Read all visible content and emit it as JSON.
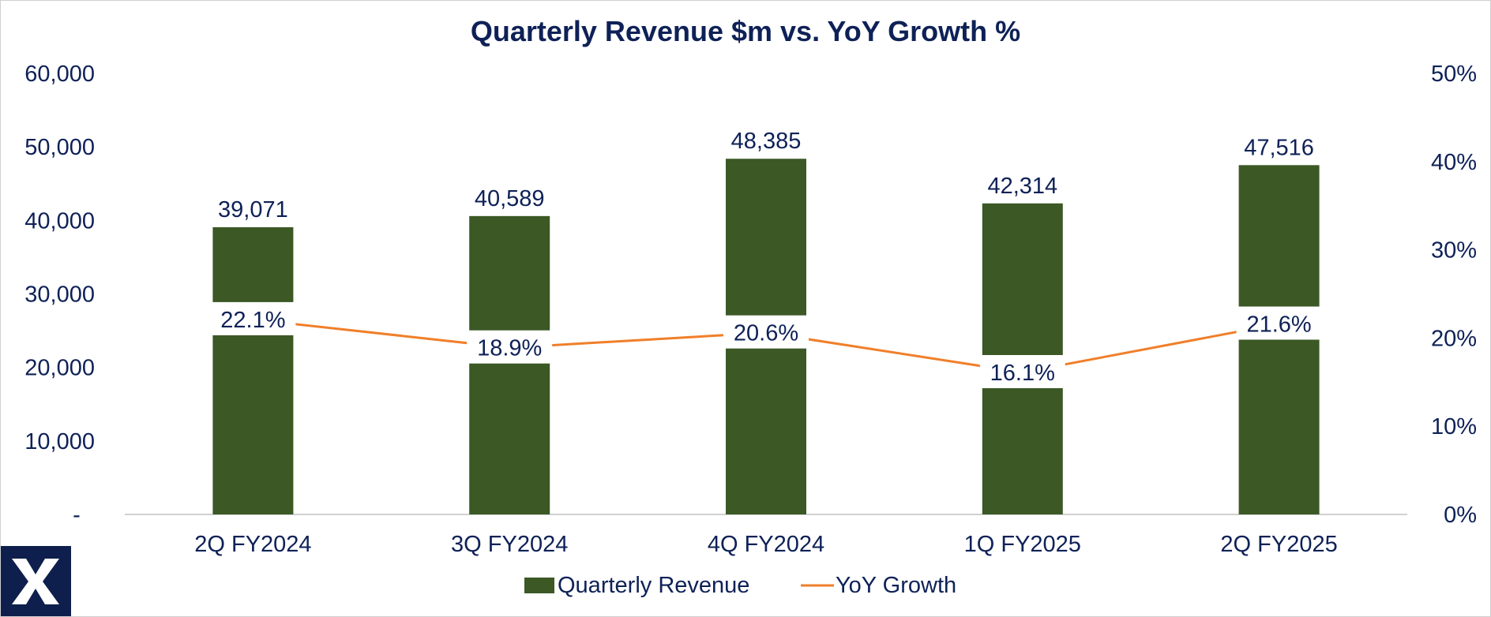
{
  "chart_data": {
    "type": "bar",
    "title": "Quarterly Revenue $m vs. YoY Growth %",
    "categories": [
      "2Q FY2024",
      "3Q FY2024",
      "4Q FY2024",
      "1Q FY2025",
      "2Q FY2025"
    ],
    "series": [
      {
        "name": "Quarterly Revenue",
        "type": "bar",
        "axis": "left",
        "color": "#3b5825",
        "values": [
          39071,
          40589,
          48385,
          42314,
          47516
        ],
        "labels": [
          "39,071",
          "40,589",
          "48,385",
          "42,314",
          "47,516"
        ]
      },
      {
        "name": "YoY Growth",
        "type": "line",
        "axis": "right",
        "color": "#f07f2a",
        "values": [
          22.1,
          18.9,
          20.6,
          16.1,
          21.6
        ],
        "labels": [
          "22.1%",
          "18.9%",
          "20.6%",
          "16.1%",
          "21.6%"
        ]
      }
    ],
    "y_left": {
      "ylim": [
        0,
        60000
      ],
      "ticks": [
        "-",
        "10,000",
        "20,000",
        "30,000",
        "40,000",
        "50,000",
        "60,000"
      ]
    },
    "y_right": {
      "ylim": [
        0,
        50
      ],
      "ticks": [
        "0%",
        "10%",
        "20%",
        "30%",
        "40%",
        "50%"
      ]
    },
    "legend": {
      "position": "bottom",
      "items": [
        "Quarterly Revenue",
        "YoY Growth"
      ]
    },
    "text_color": "#0e2157",
    "grid": false
  },
  "logo": {
    "name": "brand-logo-icon"
  }
}
